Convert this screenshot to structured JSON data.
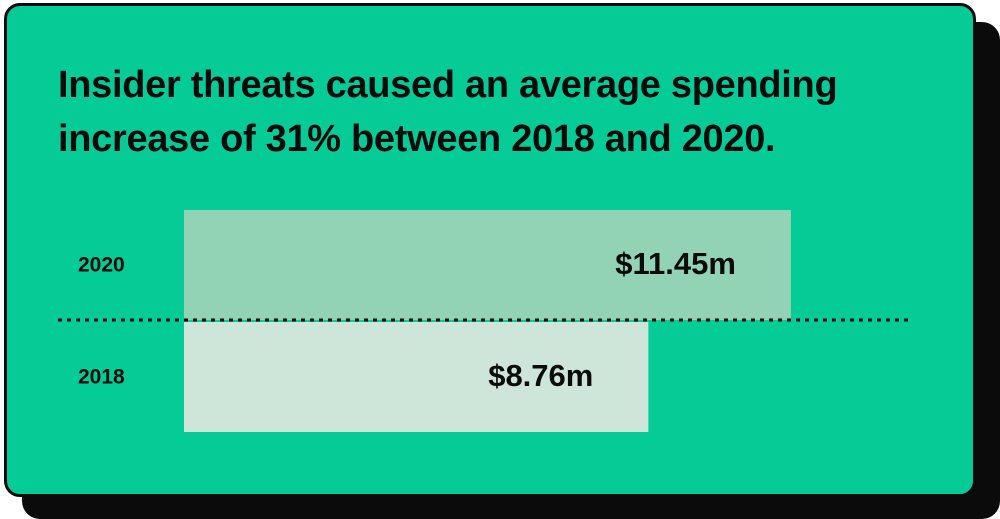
{
  "chart_data": {
    "type": "bar",
    "orientation": "horizontal",
    "title": "Insider threats caused an average spending increase of 31% between 2018 and 2020.",
    "categories": [
      "2020",
      "2018"
    ],
    "values": [
      11.45,
      8.76
    ],
    "value_labels": [
      "$11.45m",
      "$8.76m"
    ],
    "unit": "$m",
    "xlim": [
      0,
      13.3
    ],
    "grid": false,
    "legend": "none",
    "colors": {
      "background": "#05cc97",
      "border": "#0b0b0b",
      "bar_2020": "#92d3b6",
      "bar_2018": "#cde6d9",
      "divider": "#0b0b0b"
    }
  }
}
